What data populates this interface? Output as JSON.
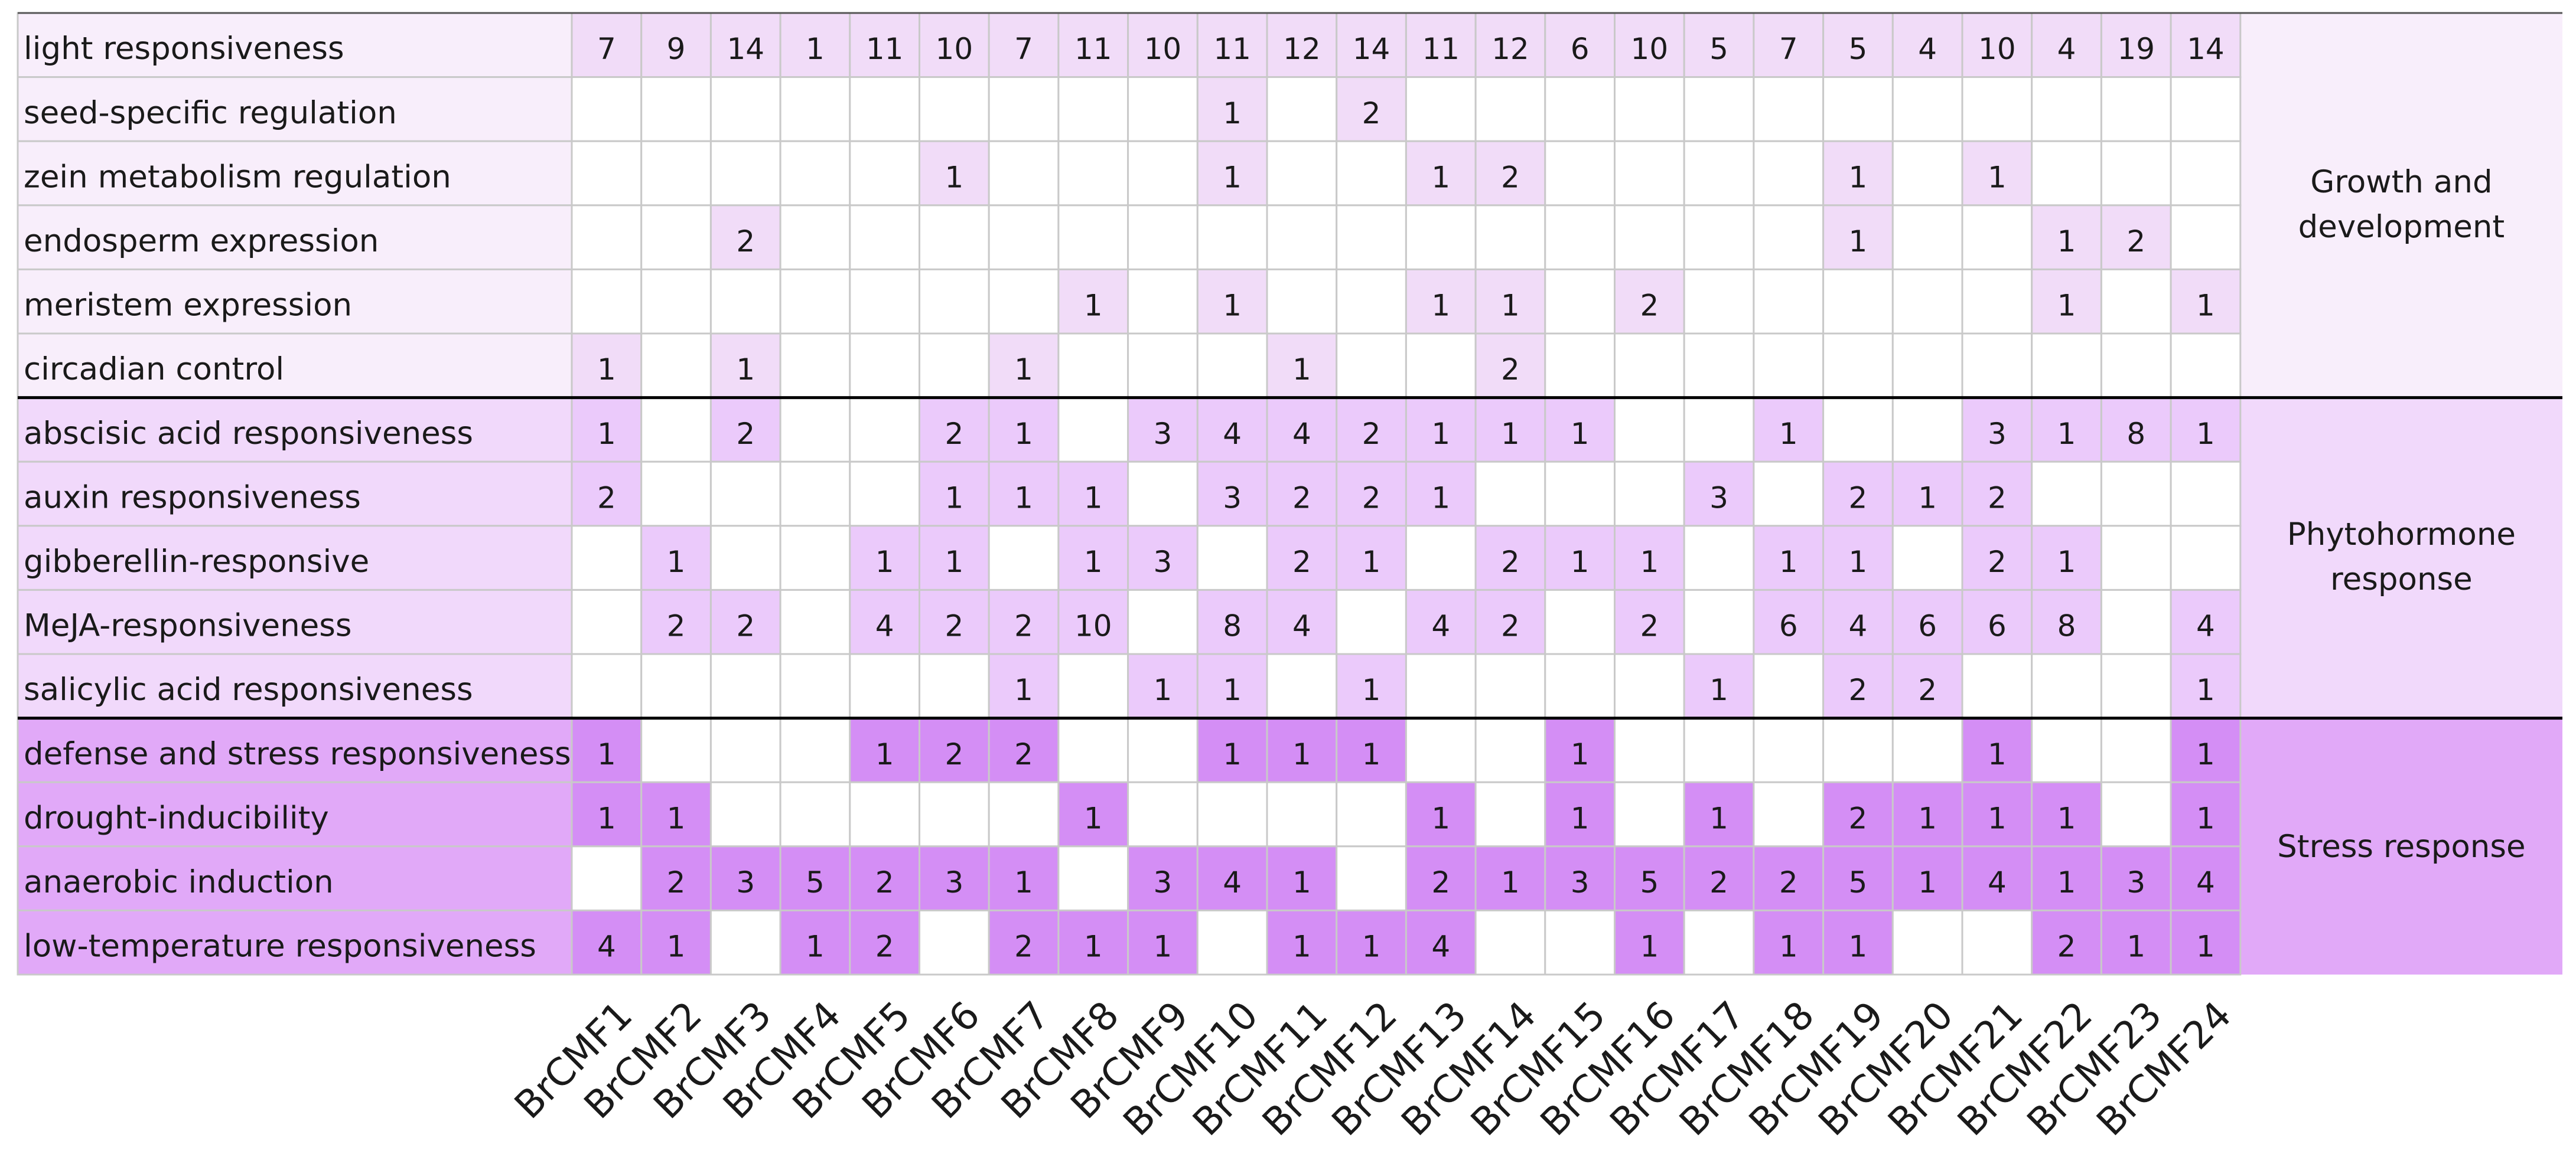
{
  "chart_data": {
    "type": "heatmap",
    "colors": {
      "growth_light": "#f8eefb",
      "growth_cell": "#f1dcf8",
      "phyto_light": "#f1d9fb",
      "phyto_cell": "#ebcafb",
      "stress_light": "#e1a9f8",
      "stress_cell": "#d48ef5",
      "empty_cell": "#ffffff",
      "grid": "#c9c9c9"
    },
    "columns": [
      "BrCMF1",
      "BrCMF2",
      "BrCMF3",
      "BrCMF4",
      "BrCMF5",
      "BrCMF6",
      "BrCMF7",
      "BrCMF8",
      "BrCMF9",
      "BrCMF10",
      "BrCMF11",
      "BrCMF12",
      "BrCMF13",
      "BrCMF14",
      "BrCMF15",
      "BrCMF16",
      "BrCMF17",
      "BrCMF18",
      "BrCMF19",
      "BrCMF20",
      "BrCMF21",
      "BrCMF22",
      "BrCMF23",
      "BrCMF24"
    ],
    "groups": [
      {
        "label": "Growth and development",
        "rows": [
          {
            "label": "light responsiveness",
            "values": [
              7,
              9,
              14,
              1,
              11,
              10,
              7,
              11,
              10,
              11,
              12,
              14,
              11,
              12,
              6,
              10,
              5,
              7,
              5,
              4,
              10,
              4,
              19,
              14
            ]
          },
          {
            "label": "seed-specific regulation",
            "values": [
              null,
              null,
              null,
              null,
              null,
              null,
              null,
              null,
              null,
              1,
              null,
              2,
              null,
              null,
              null,
              null,
              null,
              null,
              null,
              null,
              null,
              null,
              null,
              null
            ]
          },
          {
            "label": "zein metabolism regulation",
            "values": [
              null,
              null,
              null,
              null,
              null,
              1,
              null,
              null,
              null,
              1,
              null,
              null,
              1,
              2,
              null,
              null,
              null,
              null,
              1,
              null,
              1,
              null,
              null,
              null
            ]
          },
          {
            "label": "endosperm expression",
            "values": [
              null,
              null,
              2,
              null,
              null,
              null,
              null,
              null,
              null,
              null,
              null,
              null,
              null,
              null,
              null,
              null,
              null,
              null,
              1,
              null,
              null,
              1,
              2,
              null
            ]
          },
          {
            "label": "meristem expression",
            "values": [
              null,
              null,
              null,
              null,
              null,
              null,
              null,
              1,
              null,
              1,
              null,
              null,
              1,
              1,
              null,
              2,
              null,
              null,
              null,
              null,
              null,
              1,
              null,
              1
            ]
          },
          {
            "label": "circadian control",
            "values": [
              1,
              null,
              1,
              null,
              null,
              null,
              1,
              null,
              null,
              null,
              1,
              null,
              null,
              2,
              null,
              null,
              null,
              null,
              null,
              null,
              null,
              null,
              null,
              null
            ]
          }
        ]
      },
      {
        "label": "Phytohormone response",
        "rows": [
          {
            "label": "abscisic acid responsiveness",
            "values": [
              1,
              null,
              2,
              null,
              null,
              2,
              1,
              null,
              3,
              4,
              4,
              2,
              1,
              1,
              1,
              null,
              null,
              1,
              null,
              null,
              3,
              1,
              8,
              1
            ]
          },
          {
            "label": "auxin responsiveness",
            "values": [
              2,
              null,
              null,
              null,
              null,
              1,
              1,
              1,
              null,
              3,
              2,
              2,
              1,
              null,
              null,
              null,
              3,
              null,
              2,
              1,
              2,
              null,
              null,
              null
            ]
          },
          {
            "label": "gibberellin-responsive",
            "values": [
              null,
              1,
              null,
              null,
              1,
              1,
              null,
              1,
              3,
              null,
              2,
              1,
              null,
              2,
              1,
              1,
              null,
              1,
              1,
              null,
              2,
              1,
              null,
              null
            ]
          },
          {
            "label": "MeJA-responsiveness",
            "values": [
              null,
              2,
              2,
              null,
              4,
              2,
              2,
              10,
              null,
              8,
              4,
              null,
              4,
              2,
              null,
              2,
              null,
              6,
              4,
              6,
              6,
              8,
              null,
              4
            ]
          },
          {
            "label": "salicylic acid responsiveness",
            "values": [
              null,
              null,
              null,
              null,
              null,
              null,
              1,
              null,
              1,
              1,
              null,
              1,
              null,
              null,
              null,
              null,
              1,
              null,
              2,
              2,
              null,
              null,
              null,
              1
            ]
          }
        ]
      },
      {
        "label": "Stress response",
        "rows": [
          {
            "label": "defense and stress responsiveness",
            "values": [
              1,
              null,
              null,
              null,
              1,
              2,
              2,
              null,
              null,
              1,
              1,
              1,
              null,
              null,
              1,
              null,
              null,
              null,
              null,
              null,
              1,
              null,
              null,
              1
            ]
          },
          {
            "label": "drought-inducibility",
            "values": [
              1,
              1,
              null,
              null,
              null,
              null,
              null,
              1,
              null,
              null,
              null,
              null,
              1,
              null,
              1,
              null,
              1,
              null,
              2,
              1,
              1,
              1,
              null,
              1
            ]
          },
          {
            "label": "anaerobic induction",
            "values": [
              null,
              2,
              3,
              5,
              2,
              3,
              1,
              null,
              3,
              4,
              1,
              null,
              2,
              1,
              3,
              5,
              2,
              2,
              5,
              1,
              4,
              1,
              3,
              4
            ]
          },
          {
            "label": "low-temperature responsiveness",
            "values": [
              4,
              1,
              null,
              1,
              2,
              null,
              2,
              1,
              1,
              null,
              1,
              1,
              4,
              null,
              null,
              1,
              null,
              1,
              1,
              null,
              null,
              2,
              1,
              1
            ]
          }
        ]
      }
    ]
  }
}
